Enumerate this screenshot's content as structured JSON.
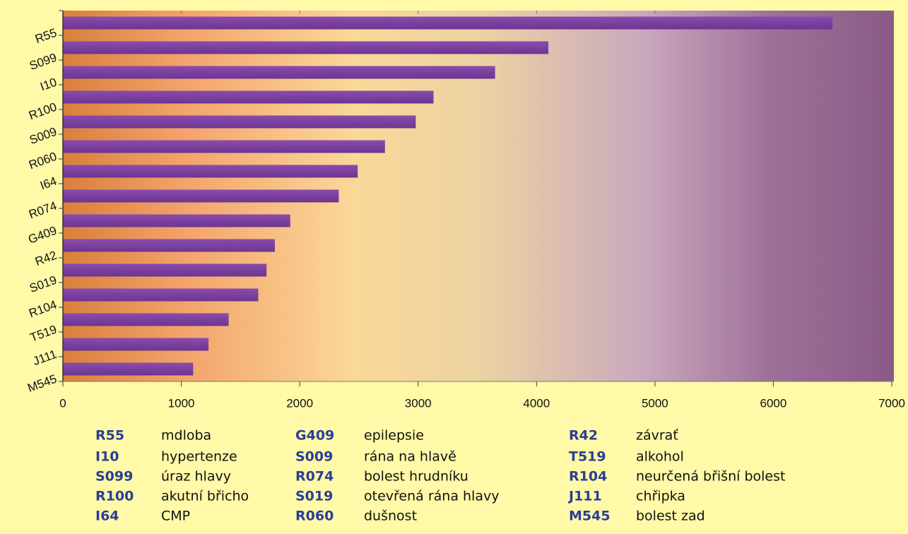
{
  "chart_data": {
    "type": "bar",
    "orientation": "horizontal",
    "categories": [
      "R55",
      "S099",
      "I10",
      "R100",
      "S009",
      "R060",
      "I64",
      "R074",
      "G409",
      "R42",
      "S019",
      "R104",
      "T519",
      "J111",
      "M545"
    ],
    "values": [
      6500,
      4100,
      3650,
      3130,
      2980,
      2720,
      2490,
      2330,
      1920,
      1790,
      1720,
      1650,
      1400,
      1230,
      1100
    ],
    "color": "#7a3e9e",
    "xlim": [
      0,
      7000
    ],
    "xticks": [
      0,
      1000,
      2000,
      3000,
      4000,
      5000,
      6000,
      7000
    ],
    "grid": false
  },
  "code_table": [
    {
      "code": "R55",
      "description": "mdloba"
    },
    {
      "code": "I10",
      "description": "hypertenze"
    },
    {
      "code": "S099",
      "description": "úraz hlavy"
    },
    {
      "code": "R100",
      "description": "akutní břicho"
    },
    {
      "code": "I64",
      "description": "CMP"
    },
    {
      "code": "G409",
      "description": "epilepsie"
    },
    {
      "code": "S009",
      "description": "rána na hlavě"
    },
    {
      "code": "R074",
      "description": "bolest hrudníku"
    },
    {
      "code": "S019",
      "description": "otevřená rána hlavy"
    },
    {
      "code": "R060",
      "description": "dušnost"
    },
    {
      "code": "R42",
      "description": "závrať"
    },
    {
      "code": "T519",
      "description": "alkohol"
    },
    {
      "code": "R104",
      "description": "neurčená břišní bolest"
    },
    {
      "code": "J111",
      "description": "chřipka"
    },
    {
      "code": "M545",
      "description": "bolest zad"
    }
  ]
}
